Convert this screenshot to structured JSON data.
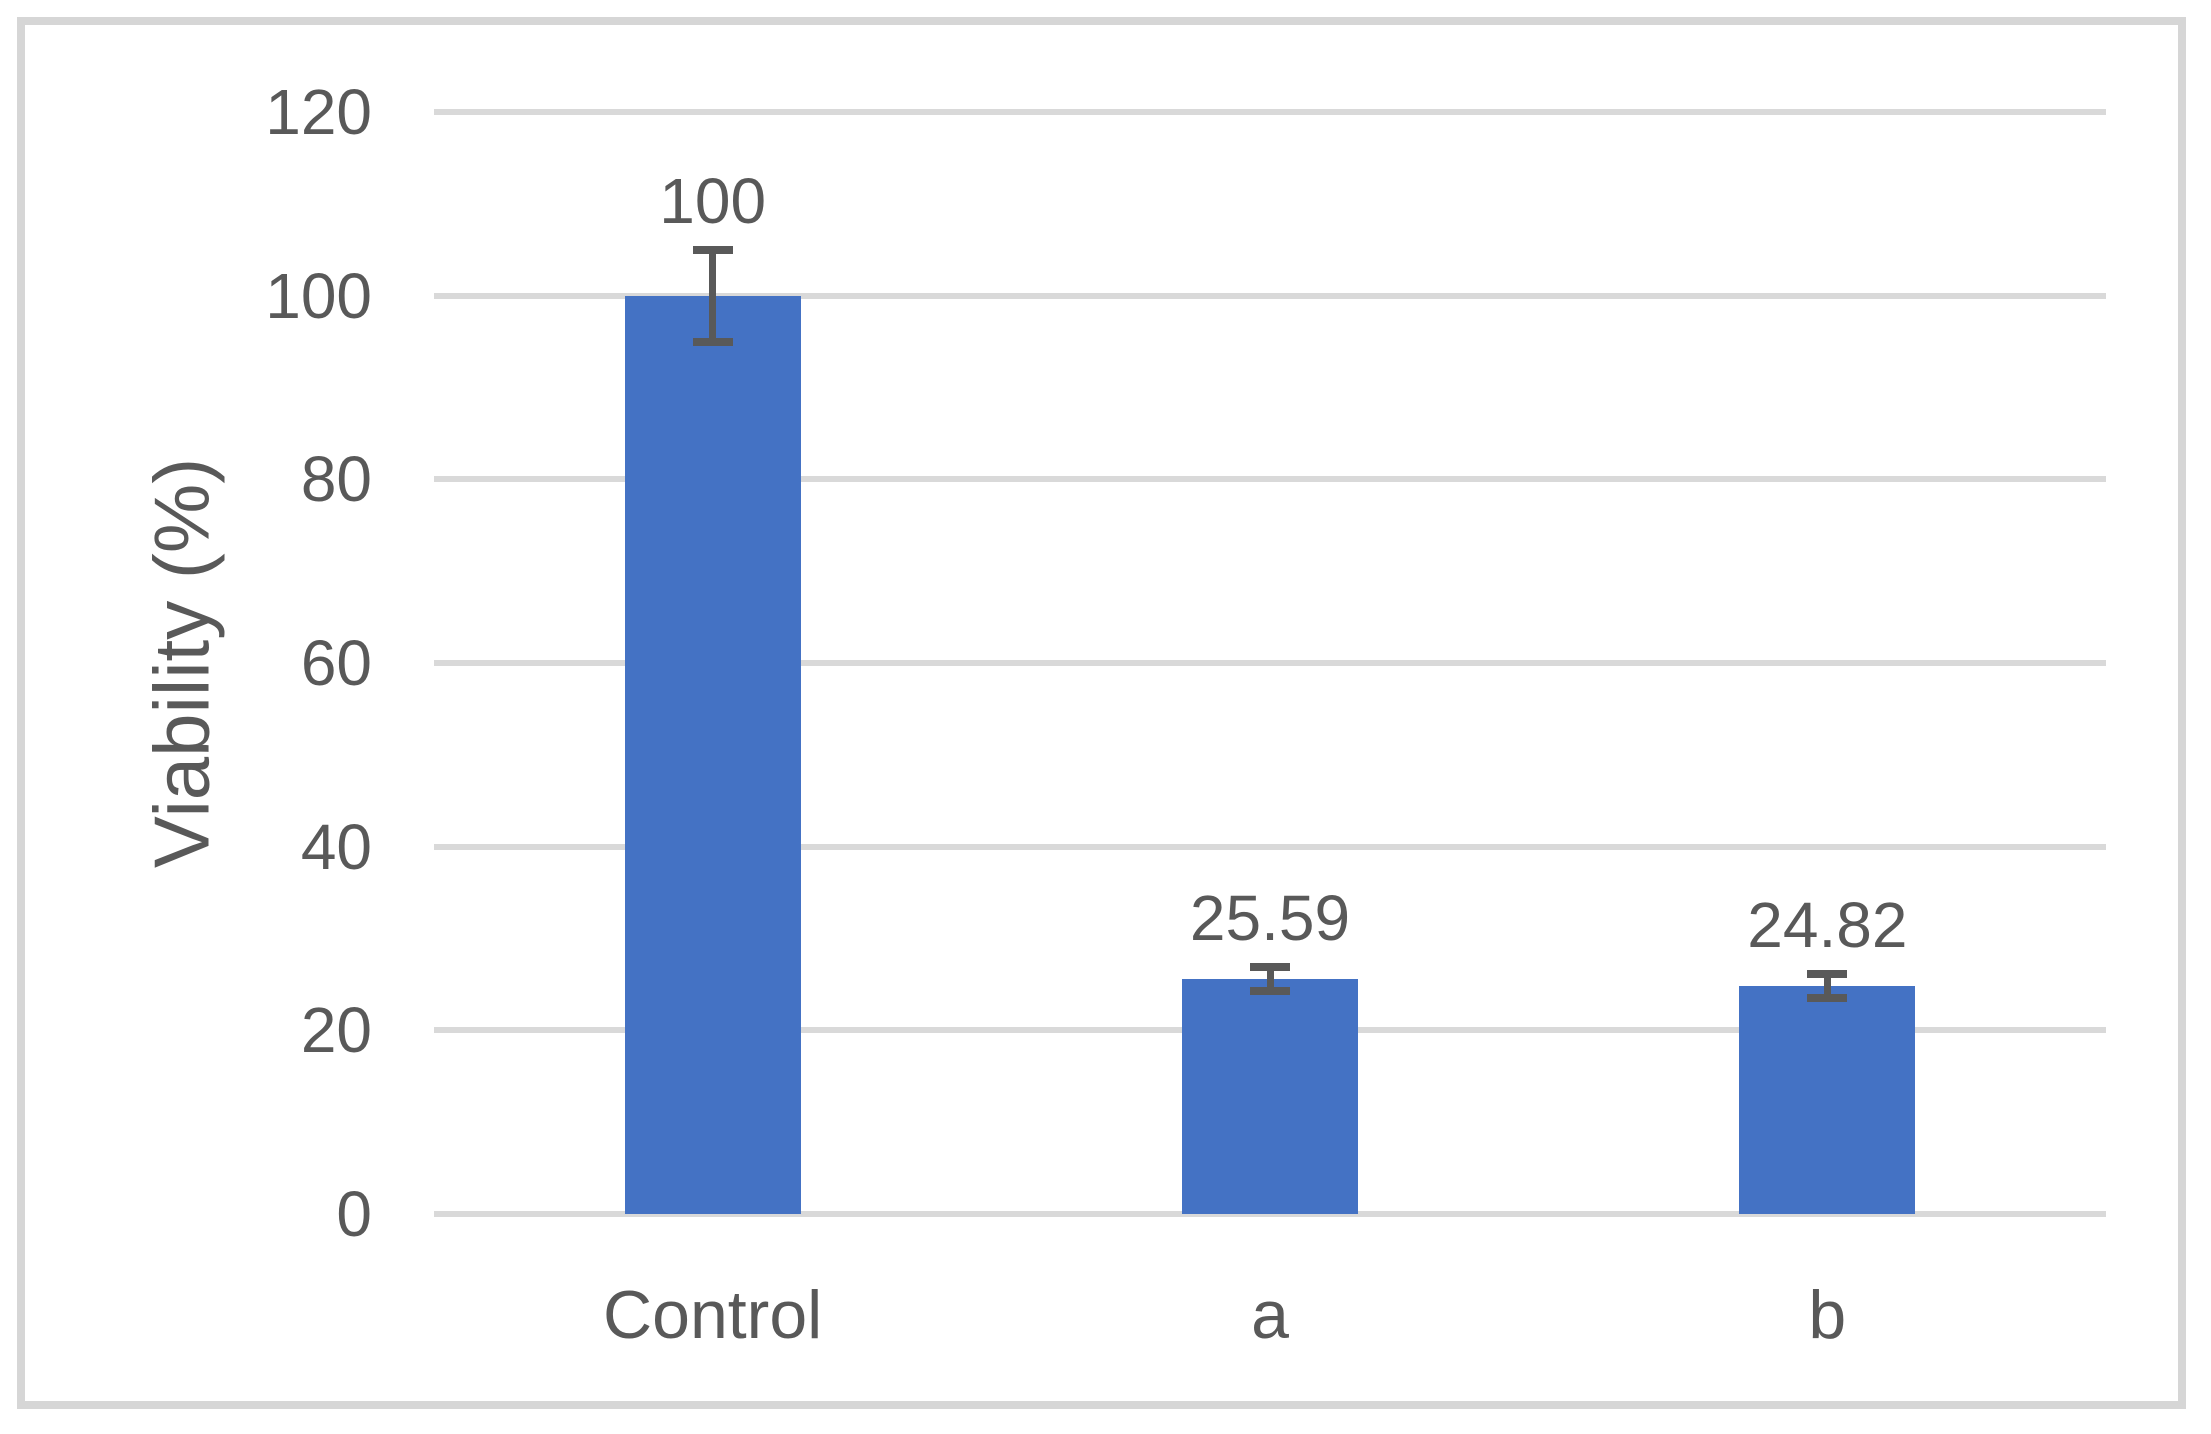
{
  "chart_data": {
    "type": "bar",
    "title": "",
    "categories": [
      "Control",
      "a",
      "b"
    ],
    "values": [
      100,
      25.59,
      24.82
    ],
    "error_bars": [
      5.0,
      1.3,
      1.3
    ],
    "data_labels": [
      "100",
      "25.59",
      "24.82"
    ],
    "ytick_labels": [
      "0",
      "20",
      "40",
      "60",
      "80",
      "100",
      "120"
    ],
    "yticks": [
      0,
      20,
      40,
      60,
      80,
      100,
      120
    ],
    "ylim": [
      0,
      120
    ],
    "xlabel": "",
    "ylabel": "Viability (%)",
    "legend": "none",
    "grid": "horizontal",
    "colors": {
      "bar": "#4472C4",
      "gridline": "#D9D9D9",
      "error_bar": "#595959",
      "text": "#595959",
      "frame": "#D6D6D6"
    }
  }
}
